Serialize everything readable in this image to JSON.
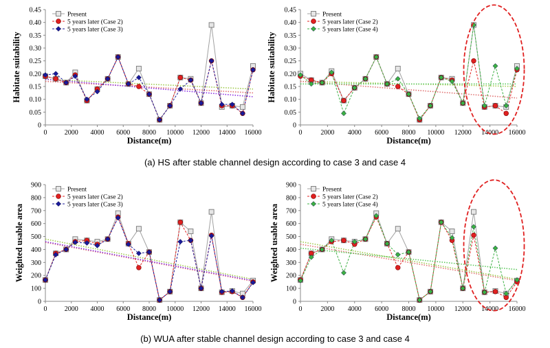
{
  "captions": {
    "a": "(a) HS after stable channel design according to case 3 and case 4",
    "b": "(b) WUA after stable channel design according to case 3 and case 4"
  },
  "colors": {
    "present": "#a0a0a0",
    "case2": "#e02020",
    "case3": "#1a1a9a",
    "case4": "#3cb043",
    "trend_present": "#9ec94a",
    "trend_case2": "#e07070",
    "trend_case3": "#8a2be2",
    "trend_case4": "#5cc85c",
    "highlight": "#e02020"
  },
  "chart_data": [
    {
      "type": "line",
      "title": "",
      "xlabel": "Distance(m)",
      "ylabel": "Habitate suitability",
      "xlim": [
        0,
        16000
      ],
      "ylim": [
        0,
        0.45
      ],
      "xticks": [
        0,
        2000,
        4000,
        6000,
        8000,
        10000,
        12000,
        14000,
        16000
      ],
      "yticks": [
        0,
        0.05,
        0.1,
        0.15,
        0.2,
        0.25,
        0.3,
        0.35,
        0.4,
        0.45
      ],
      "x": [
        0,
        800,
        1600,
        2300,
        3200,
        4000,
        4800,
        5600,
        6400,
        7200,
        8000,
        8800,
        9600,
        10400,
        11200,
        12000,
        12800,
        13600,
        14400,
        15200,
        16000
      ],
      "series": [
        {
          "name": "Present",
          "key": "present",
          "values": [
            0.19,
            0.18,
            0.165,
            0.205,
            0.095,
            0.14,
            0.18,
            0.265,
            0.16,
            0.22,
            0.12,
            0.02,
            0.075,
            0.185,
            0.18,
            0.085,
            0.39,
            0.07,
            0.075,
            0.07,
            0.23
          ]
        },
        {
          "name": "5 years later (Case 2)",
          "key": "case2",
          "values": [
            0.19,
            0.18,
            0.165,
            0.195,
            0.095,
            0.14,
            0.18,
            0.265,
            0.16,
            0.15,
            0.12,
            0.02,
            0.075,
            0.185,
            0.175,
            0.085,
            0.25,
            0.075,
            0.075,
            0.045,
            0.215
          ]
        },
        {
          "name": "5 years later (Case 3)",
          "key": "case3",
          "values": [
            0.195,
            0.2,
            0.165,
            0.19,
            0.1,
            0.13,
            0.18,
            0.265,
            0.16,
            0.185,
            0.12,
            0.02,
            0.075,
            0.14,
            0.175,
            0.085,
            0.25,
            0.08,
            0.08,
            0.045,
            0.215
          ]
        }
      ],
      "trendlines": [
        {
          "key": "present",
          "from": 0.178,
          "to": 0.14
        },
        {
          "key": "case2",
          "from": 0.17,
          "to": 0.125
        },
        {
          "key": "case3",
          "from": 0.178,
          "to": 0.11
        }
      ],
      "legend": "top-left",
      "highlight": false
    },
    {
      "type": "line",
      "title": "",
      "xlabel": "Distance(m)",
      "ylabel": "Habitate suitability",
      "xlim": [
        0,
        16000
      ],
      "ylim": [
        0,
        0.45
      ],
      "xticks": [
        0,
        2000,
        4000,
        6000,
        8000,
        10000,
        12000,
        14000,
        16000
      ],
      "yticks": [
        0,
        0.05,
        0.1,
        0.15,
        0.2,
        0.25,
        0.3,
        0.35,
        0.4,
        0.45
      ],
      "x": [
        0,
        800,
        1600,
        2300,
        3200,
        4000,
        4800,
        5600,
        6400,
        7200,
        8000,
        8800,
        9600,
        10400,
        11200,
        12000,
        12800,
        13600,
        14400,
        15200,
        16000
      ],
      "series": [
        {
          "name": "Present",
          "key": "present",
          "values": [
            0.2,
            0.175,
            0.165,
            0.21,
            0.095,
            0.145,
            0.18,
            0.265,
            0.16,
            0.22,
            0.12,
            0.02,
            0.075,
            0.185,
            0.18,
            0.085,
            0.39,
            0.07,
            0.075,
            0.07,
            0.23
          ]
        },
        {
          "name": "5 years later (Case 2)",
          "key": "case2",
          "values": [
            0.19,
            0.175,
            0.165,
            0.2,
            0.095,
            0.145,
            0.18,
            0.265,
            0.16,
            0.15,
            0.12,
            0.02,
            0.075,
            0.185,
            0.175,
            0.085,
            0.25,
            0.07,
            0.075,
            0.045,
            0.215
          ]
        },
        {
          "name": "5 years later (Case 4)",
          "key": "case4",
          "values": [
            0.195,
            0.16,
            0.165,
            0.205,
            0.045,
            0.145,
            0.18,
            0.265,
            0.16,
            0.18,
            0.12,
            0.025,
            0.075,
            0.185,
            0.17,
            0.085,
            0.39,
            0.075,
            0.23,
            0.075,
            0.22
          ]
        }
      ],
      "trendlines": [
        {
          "key": "present",
          "from": 0.17,
          "to": 0.15
        },
        {
          "key": "case2",
          "from": 0.17,
          "to": 0.105
        },
        {
          "key": "case4",
          "from": 0.16,
          "to": 0.16
        }
      ],
      "legend": "top-left",
      "highlight": true
    },
    {
      "type": "line",
      "title": "",
      "xlabel": "Distance(m)",
      "ylabel": "Weighted usable area",
      "xlim": [
        0,
        16000
      ],
      "ylim": [
        0,
        900
      ],
      "xticks": [
        0,
        2000,
        4000,
        6000,
        8000,
        10000,
        12000,
        14000,
        16000
      ],
      "yticks": [
        0,
        100,
        200,
        300,
        400,
        500,
        600,
        700,
        800,
        900
      ],
      "x": [
        0,
        800,
        1600,
        2300,
        3200,
        4000,
        4800,
        5600,
        6400,
        7200,
        8000,
        8800,
        9600,
        10400,
        11200,
        12000,
        12800,
        13600,
        14400,
        15200,
        16000
      ],
      "series": [
        {
          "name": "Present",
          "key": "present",
          "values": [
            165,
            370,
            400,
            480,
            470,
            460,
            480,
            680,
            445,
            560,
            380,
            10,
            75,
            610,
            540,
            100,
            690,
            70,
            80,
            60,
            160
          ]
        },
        {
          "name": "5 years later (Case 2)",
          "key": "case2",
          "values": [
            165,
            370,
            400,
            460,
            470,
            440,
            480,
            650,
            445,
            260,
            380,
            10,
            75,
            610,
            470,
            100,
            510,
            70,
            75,
            30,
            150
          ]
        },
        {
          "name": "5 years later (Case 3)",
          "key": "case3",
          "values": [
            165,
            360,
            400,
            455,
            450,
            430,
            480,
            645,
            440,
            370,
            380,
            10,
            75,
            460,
            470,
            100,
            505,
            75,
            80,
            30,
            145
          ]
        }
      ],
      "trendlines": [
        {
          "key": "present",
          "from": 480,
          "to": 170
        },
        {
          "key": "case2",
          "from": 455,
          "to": 155
        },
        {
          "key": "case3",
          "from": 460,
          "to": 160
        }
      ],
      "legend": "top-left",
      "highlight": false
    },
    {
      "type": "line",
      "title": "",
      "xlabel": "Distance(m)",
      "ylabel": "Weighted usable area",
      "xlim": [
        0,
        16000
      ],
      "ylim": [
        0,
        900
      ],
      "xticks": [
        0,
        2000,
        4000,
        6000,
        8000,
        10000,
        12000,
        14000,
        16000
      ],
      "yticks": [
        0,
        100,
        200,
        300,
        400,
        500,
        600,
        700,
        800,
        900
      ],
      "x": [
        0,
        800,
        1600,
        2300,
        3200,
        4000,
        4800,
        5600,
        6400,
        7200,
        8000,
        8800,
        9600,
        10400,
        11200,
        12000,
        12800,
        13600,
        14400,
        15200,
        16000
      ],
      "series": [
        {
          "name": "Present",
          "key": "present",
          "values": [
            165,
            370,
            400,
            480,
            470,
            460,
            480,
            680,
            445,
            560,
            380,
            10,
            75,
            610,
            540,
            100,
            690,
            70,
            80,
            60,
            160
          ]
        },
        {
          "name": "5 years later (Case 2)",
          "key": "case2",
          "values": [
            165,
            370,
            400,
            460,
            470,
            440,
            480,
            650,
            445,
            260,
            380,
            10,
            75,
            610,
            470,
            100,
            510,
            70,
            75,
            30,
            150
          ]
        },
        {
          "name": "5 years later (Case 4)",
          "key": "case4",
          "values": [
            160,
            340,
            400,
            470,
            220,
            460,
            480,
            660,
            445,
            360,
            380,
            10,
            75,
            610,
            490,
            100,
            575,
            70,
            410,
            60,
            165
          ]
        }
      ],
      "trendlines": [
        {
          "key": "present",
          "from": 460,
          "to": 170
        },
        {
          "key": "case2",
          "from": 440,
          "to": 160
        },
        {
          "key": "case4",
          "from": 410,
          "to": 245
        }
      ],
      "legend": "top-left",
      "highlight": true
    }
  ]
}
